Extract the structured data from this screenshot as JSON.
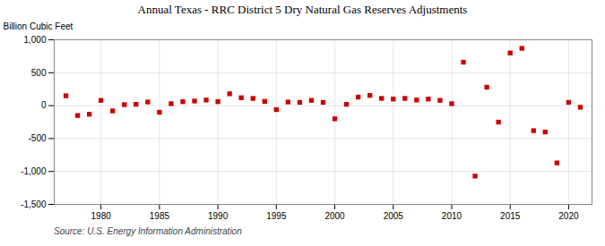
{
  "chart_data": {
    "type": "scatter",
    "title": "Annual Texas - RRC District 5 Dry Natural Gas Reserves Adjustments",
    "ylabel": "Billion Cubic Feet",
    "caption": "Source: U.S. Energy Information Administration",
    "color": "#cc0000",
    "marker": "square",
    "grid": true,
    "x": [
      1977,
      1978,
      1979,
      1980,
      1981,
      1982,
      1983,
      1984,
      1985,
      1986,
      1987,
      1988,
      1989,
      1990,
      1991,
      1992,
      1993,
      1994,
      1995,
      1996,
      1997,
      1998,
      1999,
      2000,
      2001,
      2002,
      2003,
      2004,
      2005,
      2006,
      2007,
      2008,
      2009,
      2010,
      2011,
      2012,
      2013,
      2014,
      2015,
      2016,
      2017,
      2018,
      2019,
      2020,
      2021
    ],
    "values": [
      150,
      -150,
      -130,
      80,
      -80,
      15,
      20,
      55,
      -100,
      30,
      60,
      70,
      85,
      60,
      180,
      120,
      110,
      65,
      -60,
      55,
      50,
      80,
      50,
      -200,
      20,
      130,
      155,
      110,
      100,
      110,
      85,
      100,
      80,
      30,
      660,
      -1070,
      280,
      -250,
      800,
      870,
      -380,
      -400,
      -870,
      50,
      -25
    ],
    "xlim": [
      1976,
      2022
    ],
    "xticks": [
      1980,
      1985,
      1990,
      1995,
      2000,
      2005,
      2010,
      2015,
      2020
    ],
    "ylim": [
      -1500,
      1000
    ],
    "yticks": [
      {
        "value": -1500,
        "label": "-1,500"
      },
      {
        "value": -1000,
        "label": "-1,000"
      },
      -500,
      0,
      500,
      {
        "value": 1000,
        "label": "1,000"
      }
    ]
  }
}
